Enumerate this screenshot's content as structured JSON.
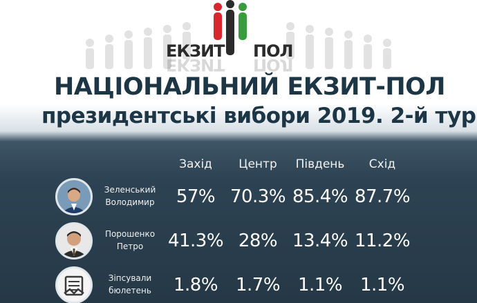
{
  "logo": {
    "left_text": "ЕКЗИТ",
    "right_text": "ПОЛ",
    "colors": {
      "red": "#d7262c",
      "green": "#3a9b3c",
      "dark": "#2b2b2b"
    }
  },
  "title": "НАЦІОНАЛЬНИЙ ЕКЗИТ-ПОЛ",
  "subtitle": "президентські вибори 2019. 2-й тур",
  "columns": [
    "Захід",
    "Центр",
    "Південь",
    "Схід"
  ],
  "rows": [
    {
      "name_line1": "Зеленський",
      "name_line2": "Володимир",
      "icon": "zelensky-portrait-icon",
      "values": [
        "57%",
        "70.3%",
        "85.4%",
        "87.7%"
      ]
    },
    {
      "name_line1": "Порошенко",
      "name_line2": "Петро",
      "icon": "poroshenko-portrait-icon",
      "values": [
        "41.3%",
        "28%",
        "13.4%",
        "11.2%"
      ]
    },
    {
      "name_line1": "Зіпсували",
      "name_line2": "бюлетень",
      "icon": "spoiled-ballot-icon",
      "values": [
        "1.8%",
        "1.7%",
        "1.1%",
        "1.1%"
      ]
    }
  ]
}
